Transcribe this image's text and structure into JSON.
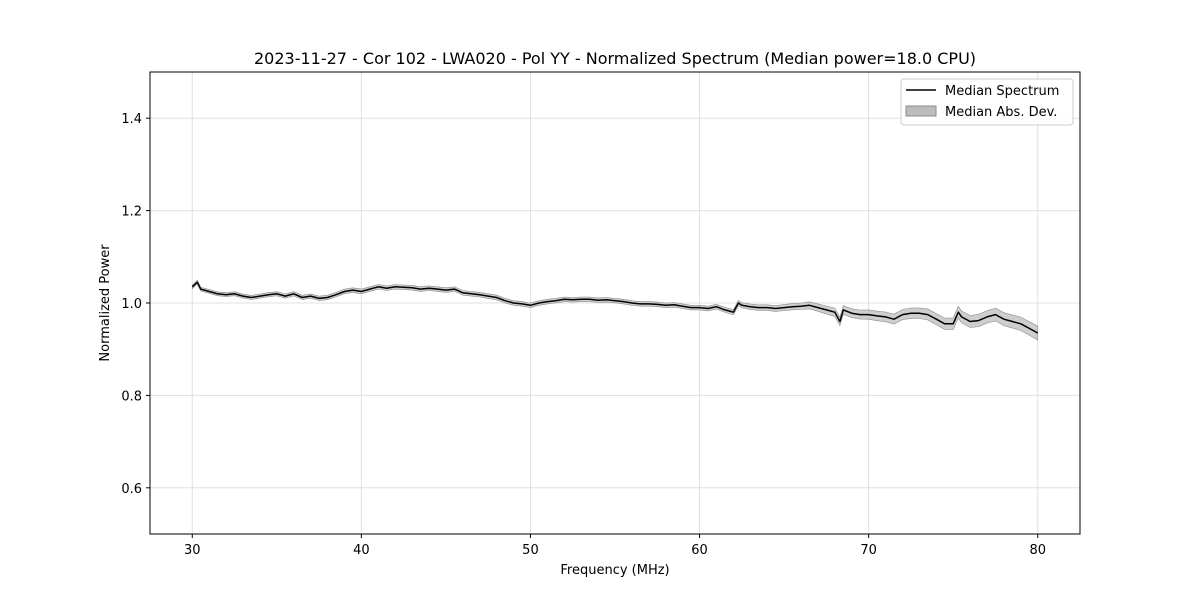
{
  "chart_data": {
    "type": "line",
    "title": "2023-11-27 - Cor 102 - LWA020 - Pol YY - Normalized Spectrum (Median power=18.0 CPU)",
    "xlabel": "Frequency (MHz)",
    "ylabel": "Normalized Power",
    "xlim": [
      27.5,
      82.5
    ],
    "ylim": [
      0.5,
      1.5
    ],
    "xticks": [
      30,
      40,
      50,
      60,
      70,
      80
    ],
    "yticks": [
      0.6,
      0.8,
      1.0,
      1.2,
      1.4
    ],
    "xtick_labels": [
      "30",
      "40",
      "50",
      "60",
      "70",
      "80"
    ],
    "ytick_labels": [
      "0.6",
      "0.8",
      "1.0",
      "1.2",
      "1.4"
    ],
    "grid": true,
    "legend_position": "top-right",
    "colors": {
      "line": "#000000",
      "band": "#bdbdbd",
      "band_edge": "#8c8c8c",
      "grid": "#e0e0e0"
    },
    "series": [
      {
        "name": "Median Spectrum",
        "kind": "line",
        "x": [
          30,
          30.3,
          30.5,
          31,
          31.5,
          32,
          32.5,
          33,
          33.5,
          34,
          34.5,
          35,
          35.5,
          36,
          36.5,
          37,
          37.5,
          38,
          38.5,
          39,
          39.5,
          40,
          40.5,
          41,
          41.5,
          42,
          42.5,
          43,
          43.5,
          44,
          44.5,
          45,
          45.5,
          46,
          46.5,
          47,
          47.5,
          48,
          48.5,
          49,
          49.5,
          50,
          50.5,
          51,
          51.5,
          52,
          52.5,
          53,
          53.5,
          54,
          54.5,
          55,
          55.5,
          56,
          56.5,
          57,
          57.5,
          58,
          58.5,
          59,
          59.5,
          60,
          60.5,
          61,
          61.5,
          62,
          62.3,
          62.5,
          63,
          63.5,
          64,
          64.5,
          65,
          65.5,
          66,
          66.5,
          67,
          67.5,
          68,
          68.3,
          68.5,
          69,
          69.5,
          70,
          70.5,
          71,
          71.5,
          72,
          72.5,
          73,
          73.5,
          74,
          74.5,
          75,
          75.3,
          75.5,
          76,
          76.5,
          77,
          77.5,
          78,
          78.5,
          79,
          79.5,
          80
        ],
        "values": [
          1.035,
          1.045,
          1.03,
          1.025,
          1.02,
          1.018,
          1.02,
          1.015,
          1.012,
          1.015,
          1.018,
          1.02,
          1.015,
          1.02,
          1.012,
          1.015,
          1.01,
          1.012,
          1.018,
          1.025,
          1.028,
          1.025,
          1.03,
          1.035,
          1.032,
          1.035,
          1.034,
          1.033,
          1.03,
          1.032,
          1.03,
          1.028,
          1.03,
          1.022,
          1.02,
          1.018,
          1.015,
          1.012,
          1.005,
          1.0,
          0.998,
          0.995,
          1.0,
          1.003,
          1.005,
          1.008,
          1.007,
          1.008,
          1.008,
          1.006,
          1.007,
          1.005,
          1.003,
          1.0,
          0.998,
          0.998,
          0.997,
          0.995,
          0.996,
          0.993,
          0.99,
          0.99,
          0.988,
          0.992,
          0.985,
          0.98,
          1.0,
          0.995,
          0.992,
          0.99,
          0.99,
          0.988,
          0.99,
          0.992,
          0.993,
          0.995,
          0.99,
          0.985,
          0.98,
          0.96,
          0.985,
          0.978,
          0.975,
          0.975,
          0.972,
          0.97,
          0.965,
          0.975,
          0.978,
          0.978,
          0.975,
          0.965,
          0.955,
          0.955,
          0.98,
          0.97,
          0.96,
          0.962,
          0.97,
          0.975,
          0.965,
          0.96,
          0.955,
          0.945,
          0.935
        ]
      },
      {
        "name": "Median Abs. Dev.",
        "kind": "band",
        "x": [
          30,
          40,
          50,
          60,
          64,
          66,
          68,
          70,
          72,
          74,
          76,
          78,
          80
        ],
        "halfwidth": [
          0.004,
          0.005,
          0.005,
          0.005,
          0.006,
          0.007,
          0.009,
          0.01,
          0.011,
          0.012,
          0.013,
          0.014,
          0.015
        ]
      }
    ]
  }
}
